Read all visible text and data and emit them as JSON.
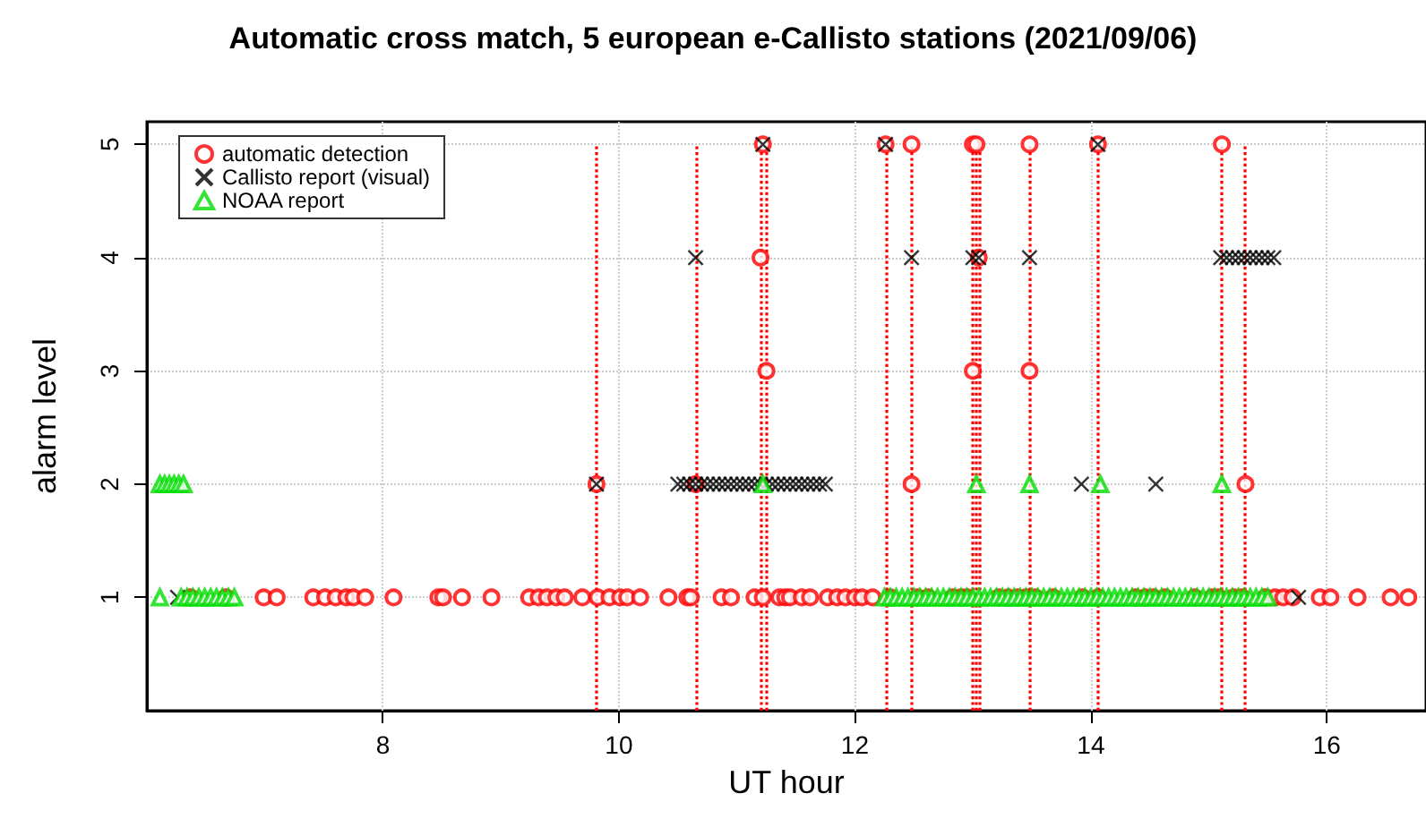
{
  "chart_data": {
    "type": "scatter",
    "title": "Automatic cross match, 5 european e-Callisto stations (2021/09/06)",
    "xlabel": "UT hour",
    "ylabel": "alarm level",
    "xlim": [
      6.0,
      16.84
    ],
    "xticks": [
      8,
      10,
      12,
      14,
      16
    ],
    "ylim": [
      0,
      5.2
    ],
    "yticks": [
      1,
      2,
      3,
      4,
      5
    ],
    "grid": true,
    "legend": "top left",
    "ref_lines": [
      {
        "axis": "x",
        "value": 9.81,
        "color": "#ff0000",
        "line_style": "dotted"
      },
      {
        "axis": "x",
        "value": 10.65,
        "color": "#ff0000",
        "line_style": "dotted"
      },
      {
        "axis": "x",
        "value": 11.21,
        "color": "#ff0000",
        "line_style": "dotted"
      },
      {
        "axis": "x",
        "value": 11.25,
        "color": "#ff0000",
        "line_style": "dotted"
      },
      {
        "axis": "x",
        "value": 12.26,
        "color": "#ff0000",
        "line_style": "dotted"
      },
      {
        "axis": "x",
        "value": 12.48,
        "color": "#ff0000",
        "line_style": "dotted"
      },
      {
        "axis": "x",
        "value": 13.0,
        "color": "#ff0000",
        "line_style": "dotted"
      },
      {
        "axis": "x",
        "value": 13.03,
        "color": "#ff0000",
        "line_style": "dotted"
      },
      {
        "axis": "x",
        "value": 13.06,
        "color": "#ff0000",
        "line_style": "dotted"
      },
      {
        "axis": "x",
        "value": 13.48,
        "color": "#ff0000",
        "line_style": "dotted"
      },
      {
        "axis": "x",
        "value": 14.06,
        "color": "#ff0000",
        "line_style": "dotted"
      },
      {
        "axis": "x",
        "value": 15.11,
        "color": "#ff0000",
        "line_style": "dotted"
      },
      {
        "axis": "x",
        "value": 15.31,
        "color": "#ff0000",
        "line_style": "dotted"
      }
    ],
    "series": [
      {
        "name": "automatic detection",
        "color": "#ff0000",
        "marker": "circle",
        "x": [
          6.37,
          6.67,
          6.99,
          7.1,
          7.41,
          7.51,
          7.6,
          7.69,
          7.75,
          7.85,
          8.09,
          8.47,
          8.51,
          8.67,
          8.92,
          9.24,
          9.32,
          9.39,
          9.47,
          9.54,
          9.69,
          9.82,
          9.92,
          10.01,
          10.07,
          10.18,
          10.42,
          10.58,
          10.61,
          10.87,
          10.95,
          11.15,
          11.22,
          11.36,
          11.41,
          11.45,
          11.55,
          11.62,
          11.77,
          11.85,
          11.92,
          12.0,
          12.06,
          12.15,
          12.3,
          12.53,
          12.62,
          12.83,
          12.9,
          12.95,
          13.22,
          13.3,
          13.38,
          13.45,
          13.53,
          13.68,
          13.93,
          14.06,
          14.38,
          14.46,
          14.53,
          14.63,
          14.88,
          15.03,
          15.08,
          15.21,
          15.28,
          15.48,
          15.56,
          15.63,
          15.71,
          15.94,
          16.03,
          16.26,
          16.54,
          16.69,
          9.81,
          10.65,
          12.48,
          15.31,
          11.25,
          13.0,
          13.48,
          11.2,
          13.05,
          11.22,
          12.26,
          12.48,
          13.0,
          13.03,
          13.48,
          14.06,
          15.11
        ],
        "values": [
          1,
          1,
          1,
          1,
          1,
          1,
          1,
          1,
          1,
          1,
          1,
          1,
          1,
          1,
          1,
          1,
          1,
          1,
          1,
          1,
          1,
          1,
          1,
          1,
          1,
          1,
          1,
          1,
          1,
          1,
          1,
          1,
          1,
          1,
          1,
          1,
          1,
          1,
          1,
          1,
          1,
          1,
          1,
          1,
          1,
          1,
          1,
          1,
          1,
          1,
          1,
          1,
          1,
          1,
          1,
          1,
          1,
          1,
          1,
          1,
          1,
          1,
          1,
          1,
          1,
          1,
          1,
          1,
          1,
          1,
          1,
          1,
          1,
          1,
          1,
          1,
          2,
          2,
          2,
          2,
          3,
          3,
          3,
          4,
          4,
          5,
          5,
          5,
          5,
          5,
          5,
          5,
          5
        ]
      },
      {
        "name": "Callisto report (visual)",
        "color": "#000000",
        "marker": "cross",
        "x": [
          6.26,
          15.76,
          9.81,
          10.5,
          10.55,
          10.6,
          10.65,
          10.7,
          10.75,
          10.8,
          10.85,
          10.9,
          10.95,
          11.0,
          11.05,
          11.1,
          11.15,
          11.2,
          11.25,
          11.3,
          11.35,
          11.4,
          11.45,
          11.5,
          11.55,
          11.6,
          11.65,
          11.7,
          11.75,
          13.92,
          14.55,
          10.65,
          12.48,
          13.0,
          13.05,
          13.48,
          15.1,
          15.15,
          15.2,
          15.25,
          15.3,
          15.35,
          15.4,
          15.45,
          15.5,
          15.55,
          11.22,
          12.26,
          14.06
        ],
        "values": [
          1,
          1,
          2,
          2,
          2,
          2,
          2,
          2,
          2,
          2,
          2,
          2,
          2,
          2,
          2,
          2,
          2,
          2,
          2,
          2,
          2,
          2,
          2,
          2,
          2,
          2,
          2,
          2,
          2,
          2,
          2,
          4,
          4,
          4,
          4,
          4,
          4,
          4,
          4,
          4,
          4,
          4,
          4,
          4,
          4,
          4,
          5,
          5,
          5
        ]
      },
      {
        "name": "NOAA report",
        "color": "#00dd00",
        "marker": "triangle",
        "x": [
          6.11,
          6.15,
          6.19,
          6.23,
          6.27,
          6.31,
          11.22,
          13.03,
          13.48,
          14.08,
          15.11,
          6.11,
          6.29,
          6.34,
          6.39,
          6.44,
          6.49,
          6.54,
          6.59,
          6.64,
          6.69,
          6.74,
          12.25,
          12.3,
          12.35,
          12.4,
          12.45,
          12.5,
          12.55,
          12.6,
          12.65,
          12.7,
          12.75,
          12.8,
          12.85,
          12.9,
          12.95,
          13.0,
          13.05,
          13.1,
          13.15,
          13.2,
          13.25,
          13.3,
          13.35,
          13.4,
          13.45,
          13.5,
          13.55,
          13.6,
          13.65,
          13.7,
          13.75,
          13.8,
          13.85,
          13.9,
          13.95,
          14.0,
          14.05,
          14.1,
          14.15,
          14.2,
          14.25,
          14.3,
          14.35,
          14.4,
          14.45,
          14.5,
          14.55,
          14.6,
          14.65,
          14.7,
          14.75,
          14.8,
          14.85,
          14.9,
          14.95,
          15.0,
          15.05,
          15.1,
          15.15,
          15.2,
          15.25,
          15.3,
          15.35,
          15.4,
          15.45,
          15.5
        ],
        "values": [
          2,
          2,
          2,
          2,
          2,
          2,
          2,
          2,
          2,
          2,
          2,
          1,
          1,
          1,
          1,
          1,
          1,
          1,
          1,
          1,
          1,
          1,
          1,
          1,
          1,
          1,
          1,
          1,
          1,
          1,
          1,
          1,
          1,
          1,
          1,
          1,
          1,
          1,
          1,
          1,
          1,
          1,
          1,
          1,
          1,
          1,
          1,
          1,
          1,
          1,
          1,
          1,
          1,
          1,
          1,
          1,
          1,
          1,
          1,
          1,
          1,
          1,
          1,
          1,
          1,
          1,
          1,
          1,
          1,
          1,
          1,
          1,
          1,
          1,
          1,
          1,
          1,
          1,
          1,
          1,
          1,
          1,
          1,
          1,
          1,
          1,
          1,
          1
        ]
      }
    ]
  }
}
